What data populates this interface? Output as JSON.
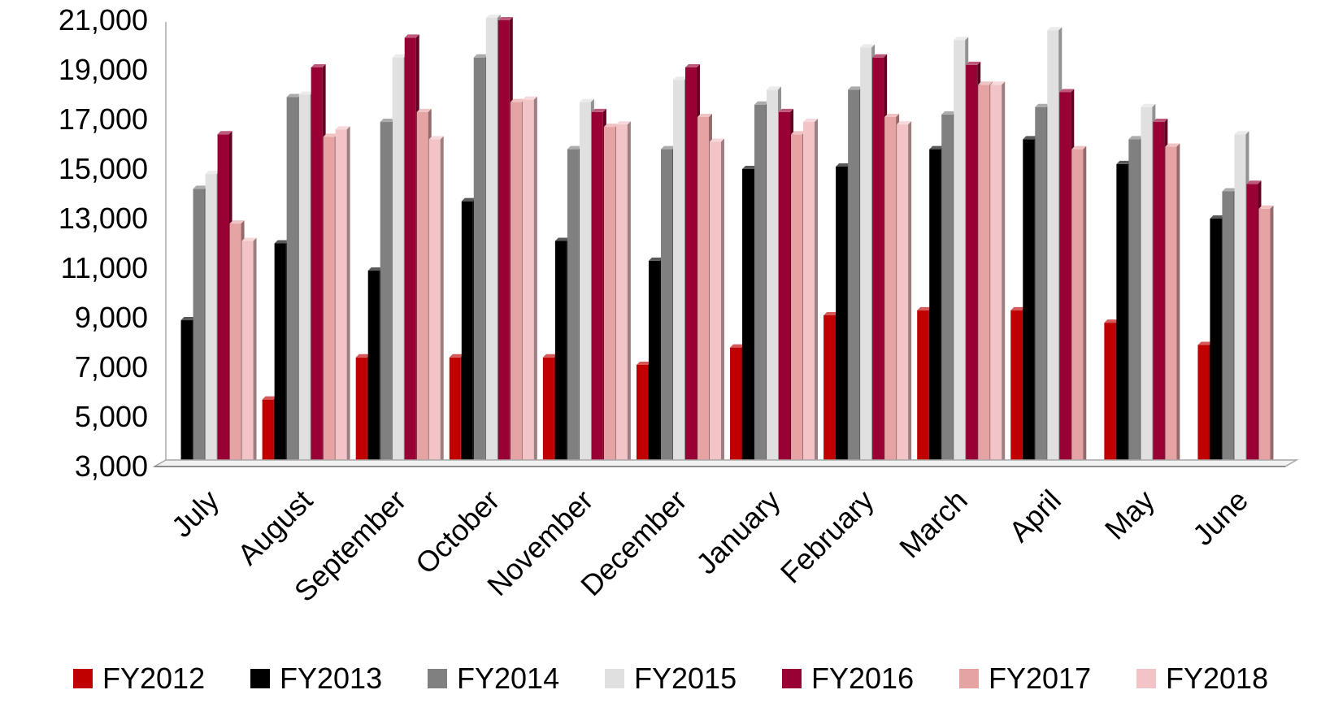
{
  "chart_data": {
    "type": "bar",
    "title": "",
    "xlabel": "",
    "ylabel": "",
    "ylim": [
      3000,
      21000
    ],
    "yticks": [
      "3,000",
      "5,000",
      "7,000",
      "9,000",
      "11,000",
      "13,000",
      "15,000",
      "17,000",
      "19,000",
      "21,000"
    ],
    "grid": false,
    "legend_position": "bottom",
    "categories": [
      "July",
      "August",
      "September",
      "October",
      "November",
      "December",
      "January",
      "February",
      "March",
      "April",
      "May",
      "June"
    ],
    "series": [
      {
        "name": "FY2012",
        "color": "#c00000",
        "values": [
          null,
          5700,
          7400,
          7400,
          7400,
          7100,
          7800,
          9100,
          9300,
          9300,
          8800,
          7900
        ]
      },
      {
        "name": "FY2013",
        "color": "#000000",
        "values": [
          8900,
          12000,
          10900,
          13700,
          12100,
          11300,
          15000,
          15100,
          15800,
          16200,
          15200,
          13000
        ]
      },
      {
        "name": "FY2014",
        "color": "#808080",
        "values": [
          14200,
          17900,
          16900,
          19500,
          15800,
          15800,
          17600,
          18200,
          17200,
          17500,
          16200,
          14100
        ]
      },
      {
        "name": "FY2015",
        "color": "#e0e0e0",
        "values": [
          14800,
          18000,
          19500,
          21100,
          17700,
          18600,
          18200,
          19900,
          20200,
          20600,
          17500,
          16400
        ]
      },
      {
        "name": "FY2016",
        "color": "#990033",
        "values": [
          16400,
          19100,
          20300,
          21000,
          17300,
          19100,
          17300,
          19500,
          19200,
          18100,
          16900,
          14400
        ]
      },
      {
        "name": "FY2017",
        "color": "#e6a3a3",
        "values": [
          12800,
          16300,
          17300,
          17700,
          16700,
          17100,
          16400,
          17100,
          18400,
          15800,
          15900,
          13400
        ]
      },
      {
        "name": "FY2018",
        "color": "#f2c4c8",
        "values": [
          12100,
          16600,
          16200,
          17800,
          16800,
          16100,
          16900,
          16800,
          18400,
          null,
          null,
          null
        ]
      }
    ]
  }
}
